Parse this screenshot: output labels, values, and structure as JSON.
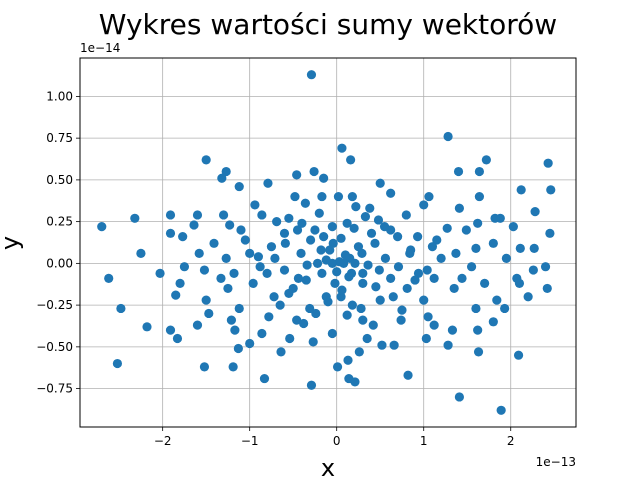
{
  "chart_data": {
    "type": "scatter",
    "title": "Wykres wartości sumy wektorów",
    "xlabel": "x",
    "ylabel": "y",
    "x_scale_label": "1e−13",
    "y_scale_label": "1e−14",
    "xlim": [
      -2.95e-13,
      2.75e-13
    ],
    "ylim": [
      -9.8e-15,
      1.23e-14
    ],
    "x_ticks": [
      {
        "value": -2e-13,
        "label": "−2"
      },
      {
        "value": -1e-13,
        "label": "−1"
      },
      {
        "value": 0,
        "label": "0"
      },
      {
        "value": 1e-13,
        "label": "1"
      },
      {
        "value": 2e-13,
        "label": "2"
      }
    ],
    "y_ticks": [
      {
        "value": -7.5e-15,
        "label": "−0.75"
      },
      {
        "value": -5e-15,
        "label": "−0.50"
      },
      {
        "value": -2.5e-15,
        "label": "−0.25"
      },
      {
        "value": 0,
        "label": "0.00"
      },
      {
        "value": 2.5e-15,
        "label": "0.25"
      },
      {
        "value": 5e-15,
        "label": "0.50"
      },
      {
        "value": 7.5e-15,
        "label": "0.75"
      },
      {
        "value": 1e-14,
        "label": "1.00"
      }
    ],
    "grid": true,
    "marker_color": "#1f77b4",
    "x_unit": 1e-13,
    "y_unit": 1e-14,
    "points": [
      [
        -0.29,
        1.13
      ],
      [
        1.28,
        0.76
      ],
      [
        0.06,
        0.69
      ],
      [
        0.16,
        0.62
      ],
      [
        -1.5,
        0.62
      ],
      [
        1.72,
        0.62
      ],
      [
        2.43,
        0.6
      ],
      [
        -1.27,
        0.55
      ],
      [
        -0.26,
        0.55
      ],
      [
        1.4,
        0.55
      ],
      [
        1.64,
        0.55
      ],
      [
        -0.46,
        0.53
      ],
      [
        -0.15,
        0.51
      ],
      [
        -1.32,
        0.51
      ],
      [
        0.5,
        0.48
      ],
      [
        -0.79,
        0.48
      ],
      [
        2.12,
        0.44
      ],
      [
        2.46,
        0.44
      ],
      [
        -1.12,
        0.46
      ],
      [
        0.62,
        0.42
      ],
      [
        1.06,
        0.4
      ],
      [
        1.64,
        0.4
      ],
      [
        -0.48,
        0.4
      ],
      [
        -0.17,
        0.4
      ],
      [
        0.02,
        0.4
      ],
      [
        0.18,
        0.4
      ],
      [
        -0.36,
        0.36
      ],
      [
        0.38,
        0.33
      ],
      [
        1.0,
        0.35
      ],
      [
        -0.94,
        0.35
      ],
      [
        1.41,
        0.33
      ],
      [
        2.28,
        0.31
      ],
      [
        -1.3,
        0.29
      ],
      [
        -1.6,
        0.29
      ],
      [
        -1.91,
        0.29
      ],
      [
        -0.86,
        0.29
      ],
      [
        0.8,
        0.29
      ],
      [
        1.88,
        0.27
      ],
      [
        -0.55,
        0.27
      ],
      [
        -2.32,
        0.27
      ],
      [
        1.82,
        0.27
      ],
      [
        0.48,
        0.26
      ],
      [
        -0.69,
        0.25
      ],
      [
        1.62,
        0.24
      ],
      [
        -1.64,
        0.23
      ],
      [
        -1.23,
        0.23
      ],
      [
        1.27,
        0.21
      ],
      [
        0.2,
        0.21
      ],
      [
        2.03,
        0.22
      ],
      [
        -2.7,
        0.22
      ],
      [
        -1.1,
        0.2
      ],
      [
        -0.25,
        0.2
      ],
      [
        0.62,
        0.2
      ],
      [
        1.49,
        0.2
      ],
      [
        -1.91,
        0.18
      ],
      [
        2.45,
        0.18
      ],
      [
        -1.77,
        0.16
      ],
      [
        0.93,
        0.16
      ],
      [
        1.15,
        0.14
      ],
      [
        -1.41,
        0.12
      ],
      [
        -0.59,
        0.12
      ],
      [
        -0.04,
        0.12
      ],
      [
        0.44,
        0.12
      ],
      [
        1.8,
        0.12
      ],
      [
        2.11,
        0.09
      ],
      [
        1.6,
        0.09
      ],
      [
        2.27,
        0.09
      ],
      [
        -2.25,
        0.06
      ],
      [
        -1.58,
        0.06
      ],
      [
        -1.0,
        0.06
      ],
      [
        -0.41,
        0.06
      ],
      [
        0.29,
        0.06
      ],
      [
        0.84,
        0.06
      ],
      [
        1.37,
        0.06
      ],
      [
        -1.27,
        0.03
      ],
      [
        -0.71,
        0.03
      ],
      [
        0.15,
        0.03
      ],
      [
        0.56,
        0.03
      ],
      [
        1.2,
        0.03
      ],
      [
        1.95,
        0.03
      ],
      [
        -0.12,
        0.02
      ],
      [
        0.03,
        0.01
      ],
      [
        -0.05,
        0.0
      ],
      [
        0.08,
        0.0
      ],
      [
        -0.22,
        0.0
      ],
      [
        0.21,
        0.0
      ],
      [
        -0.34,
        -0.01
      ],
      [
        0.36,
        -0.01
      ],
      [
        -1.75,
        -0.02
      ],
      [
        -0.88,
        -0.02
      ],
      [
        0.71,
        -0.02
      ],
      [
        1.55,
        -0.02
      ],
      [
        2.4,
        -0.02
      ],
      [
        -1.52,
        -0.04
      ],
      [
        -0.6,
        -0.04
      ],
      [
        0.49,
        -0.04
      ],
      [
        1.04,
        -0.04
      ],
      [
        2.26,
        -0.04
      ],
      [
        -2.03,
        -0.06
      ],
      [
        -1.18,
        -0.06
      ],
      [
        -0.17,
        -0.06
      ],
      [
        0.17,
        -0.06
      ],
      [
        0.94,
        -0.06
      ],
      [
        -2.62,
        -0.09
      ],
      [
        -1.33,
        -0.09
      ],
      [
        -0.44,
        -0.09
      ],
      [
        0.62,
        -0.09
      ],
      [
        1.12,
        -0.09
      ],
      [
        1.44,
        -0.09
      ],
      [
        2.07,
        -0.09
      ],
      [
        -1.8,
        -0.12
      ],
      [
        -0.96,
        -0.12
      ],
      [
        0.3,
        -0.12
      ],
      [
        1.7,
        -0.12
      ],
      [
        2.1,
        -0.12
      ],
      [
        -1.25,
        -0.15
      ],
      [
        -0.5,
        -0.15
      ],
      [
        0.81,
        -0.15
      ],
      [
        1.35,
        -0.15
      ],
      [
        2.42,
        -0.15
      ],
      [
        -1.85,
        -0.19
      ],
      [
        -0.72,
        -0.2
      ],
      [
        0.05,
        -0.2
      ],
      [
        0.5,
        -0.22
      ],
      [
        1.0,
        -0.22
      ],
      [
        1.84,
        -0.22
      ],
      [
        2.2,
        -0.2
      ],
      [
        -1.5,
        -0.22
      ],
      [
        -0.1,
        -0.23
      ],
      [
        -2.48,
        -0.27
      ],
      [
        -1.12,
        -0.27
      ],
      [
        -0.31,
        -0.27
      ],
      [
        0.28,
        -0.27
      ],
      [
        1.6,
        -0.27
      ],
      [
        1.93,
        -0.27
      ],
      [
        -1.47,
        -0.3
      ],
      [
        -0.78,
        -0.32
      ],
      [
        0.12,
        -0.31
      ],
      [
        1.05,
        -0.32
      ],
      [
        -1.21,
        -0.34
      ],
      [
        -0.46,
        -0.34
      ],
      [
        0.74,
        -0.34
      ],
      [
        1.8,
        -0.35
      ],
      [
        -2.18,
        -0.38
      ],
      [
        -1.6,
        -0.37
      ],
      [
        0.42,
        -0.37
      ],
      [
        1.12,
        -0.37
      ],
      [
        -1.91,
        -0.4
      ],
      [
        -1.17,
        -0.4
      ],
      [
        -0.86,
        -0.42
      ],
      [
        -0.05,
        -0.42
      ],
      [
        1.33,
        -0.4
      ],
      [
        1.62,
        -0.4
      ],
      [
        -1.83,
        -0.45
      ],
      [
        -0.54,
        -0.45
      ],
      [
        0.35,
        -0.45
      ],
      [
        1.03,
        -0.45
      ],
      [
        -1.0,
        -0.48
      ],
      [
        -0.27,
        -0.47
      ],
      [
        0.52,
        -0.49
      ],
      [
        0.66,
        -0.49
      ],
      [
        1.28,
        -0.49
      ],
      [
        -1.13,
        -0.51
      ],
      [
        0.26,
        -0.53
      ],
      [
        1.63,
        -0.53
      ],
      [
        -0.64,
        -0.53
      ],
      [
        2.09,
        -0.55
      ],
      [
        0.13,
        -0.58
      ],
      [
        -2.52,
        -0.6
      ],
      [
        -1.52,
        -0.62
      ],
      [
        -1.19,
        -0.62
      ],
      [
        0.01,
        -0.62
      ],
      [
        0.82,
        -0.67
      ],
      [
        -0.83,
        -0.69
      ],
      [
        0.14,
        -0.69
      ],
      [
        0.21,
        -0.71
      ],
      [
        -0.29,
        -0.73
      ],
      [
        1.41,
        -0.8
      ],
      [
        1.89,
        -0.88
      ],
      [
        0.0,
        -0.05
      ],
      [
        0.1,
        0.05
      ],
      [
        -0.08,
        0.08
      ],
      [
        0.25,
        0.1
      ],
      [
        -0.3,
        0.14
      ],
      [
        0.4,
        0.18
      ],
      [
        -0.45,
        0.2
      ],
      [
        0.55,
        0.22
      ],
      [
        -0.6,
        0.18
      ],
      [
        0.7,
        0.16
      ],
      [
        -0.75,
        0.1
      ],
      [
        0.85,
        0.08
      ],
      [
        -0.9,
        0.04
      ],
      [
        1.1,
        0.1
      ],
      [
        -1.05,
        0.14
      ],
      [
        0.3,
        -0.06
      ],
      [
        -0.35,
        -0.1
      ],
      [
        0.45,
        -0.14
      ],
      [
        -0.55,
        -0.18
      ],
      [
        0.65,
        -0.2
      ],
      [
        -0.65,
        -0.25
      ],
      [
        0.75,
        -0.28
      ],
      [
        -0.8,
        -0.06
      ],
      [
        0.9,
        -0.1
      ],
      [
        -0.15,
        0.16
      ],
      [
        0.12,
        0.24
      ],
      [
        -0.2,
        0.3
      ],
      [
        0.22,
        0.34
      ],
      [
        -0.4,
        0.24
      ],
      [
        0.33,
        0.28
      ],
      [
        -0.05,
        0.22
      ],
      [
        0.06,
        -0.16
      ],
      [
        -0.12,
        -0.2
      ],
      [
        0.18,
        -0.25
      ],
      [
        -0.24,
        -0.3
      ],
      [
        0.3,
        -0.34
      ],
      [
        -0.38,
        -0.36
      ],
      [
        0.05,
        0.15
      ],
      [
        -0.02,
        -0.12
      ],
      [
        0.14,
        -0.08
      ],
      [
        -0.18,
        0.08
      ]
    ]
  }
}
